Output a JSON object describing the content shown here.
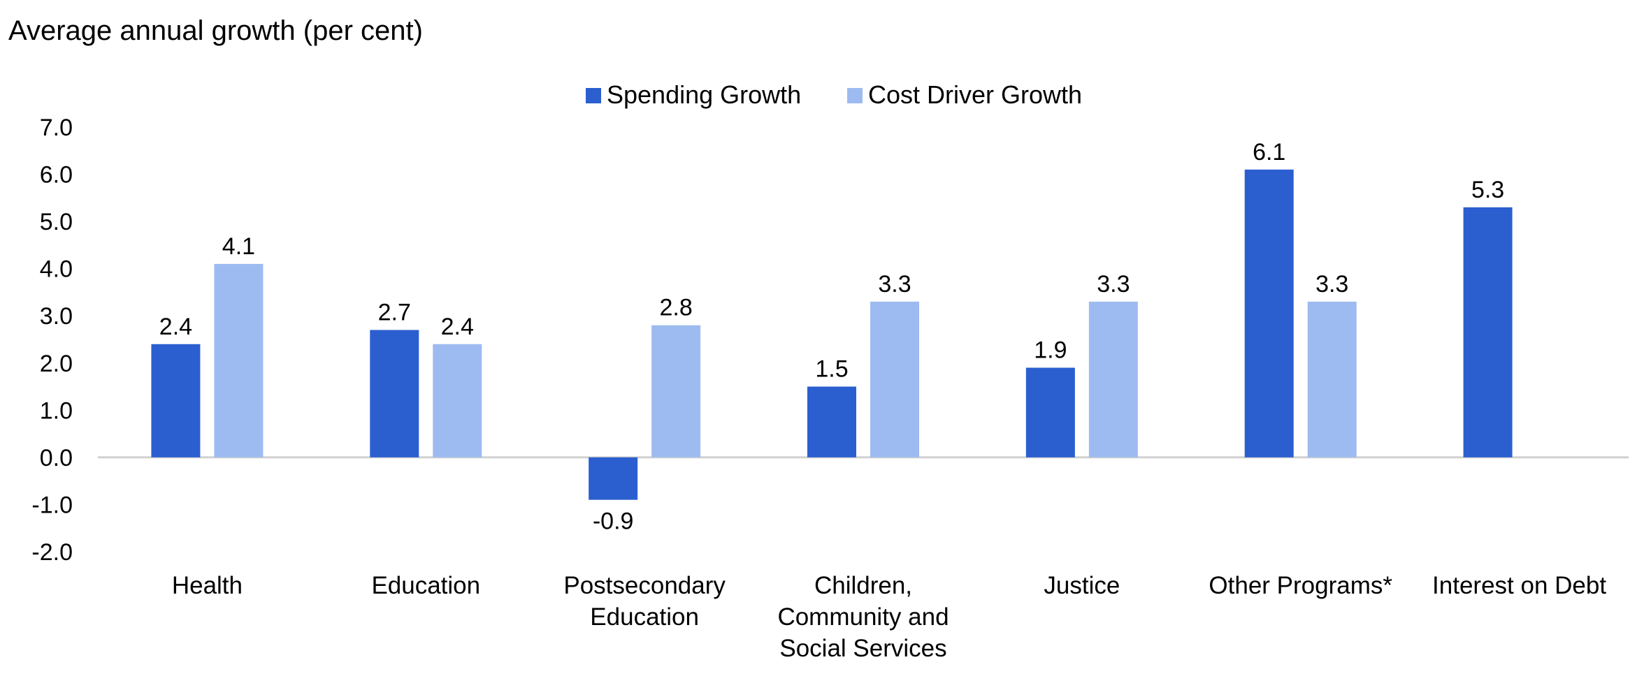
{
  "chart_data": {
    "type": "bar",
    "title": "Average annual growth (per cent)",
    "xlabel": "",
    "ylabel": "",
    "ylim": [
      -2.0,
      7.0
    ],
    "yticks": [
      "7.0",
      "6.0",
      "5.0",
      "4.0",
      "3.0",
      "2.0",
      "1.0",
      "0.0",
      "-1.0",
      "-2.0"
    ],
    "categories": [
      [
        "Health"
      ],
      [
        "Education"
      ],
      [
        "Postsecondary",
        "Education"
      ],
      [
        "Children,",
        "Community and",
        "Social Services"
      ],
      [
        "Justice"
      ],
      [
        "Other Programs*"
      ],
      [
        "Interest on Debt"
      ]
    ],
    "series": [
      {
        "name": "Spending Growth",
        "color": "#2b5fd0",
        "values": [
          2.4,
          2.7,
          -0.9,
          1.5,
          1.9,
          6.1,
          5.3
        ]
      },
      {
        "name": "Cost Driver Growth",
        "color": "#9dbbf0",
        "values": [
          4.1,
          2.4,
          2.8,
          3.3,
          3.3,
          3.3,
          null
        ]
      }
    ],
    "data_labels": [
      [
        "2.4",
        "2.7",
        "-0.9",
        "1.5",
        "1.9",
        "6.1",
        "5.3"
      ],
      [
        "4.1",
        "2.4",
        "2.8",
        "3.3",
        "3.3",
        "3.3",
        null
      ]
    ],
    "legend_position": "top-center",
    "grid": false
  }
}
